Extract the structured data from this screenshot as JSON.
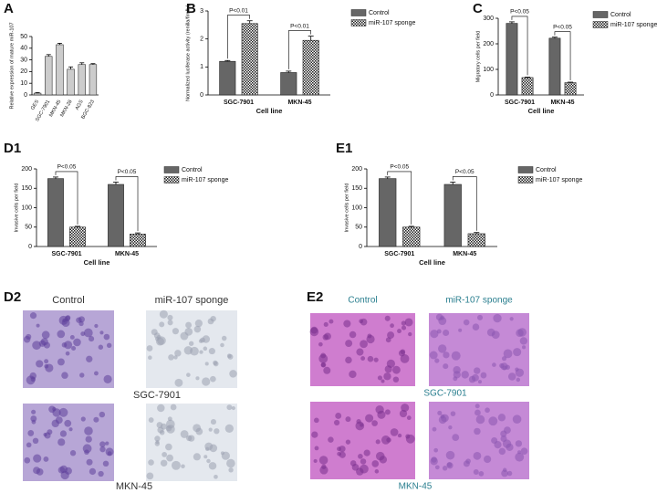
{
  "chart_data": [
    {
      "type": "bar",
      "panel": "A",
      "ylabel": "Relative expression of mature miR-107",
      "categories": [
        "GES",
        "SGC-7901",
        "MKN-45",
        "MKN-28",
        "AGS",
        "BGC-823"
      ],
      "values": [
        1.5,
        33,
        43,
        22,
        26,
        26
      ],
      "errors": [
        0.5,
        1.5,
        1.2,
        2,
        1.5,
        0.8
      ],
      "color": "#cccccc",
      "ylim": [
        0,
        50
      ],
      "yticks": [
        0,
        10,
        20,
        30,
        40,
        50
      ]
    },
    {
      "type": "grouped-bar",
      "panel": "B",
      "ylabel": "Normalized luciferase activity (renilla/firefly)",
      "xlabel": "Cell line",
      "categories": [
        "SGC-7901",
        "MKN-45"
      ],
      "series": [
        {
          "name": "Control",
          "color": "#666666",
          "values": [
            1.2,
            0.8
          ],
          "errors": [
            0.03,
            0.05
          ]
        },
        {
          "name": "miR-107 sponge",
          "color": "#222222",
          "values": [
            2.55,
            1.95
          ],
          "errors": [
            0.1,
            0.15
          ]
        }
      ],
      "annotations": [
        "P<0.01",
        "P<0.01"
      ],
      "ylim": [
        0,
        3
      ],
      "yticks": [
        0,
        1,
        2,
        3
      ]
    },
    {
      "type": "grouped-bar",
      "panel": "C",
      "ylabel": "Migratory cells per field",
      "xlabel": "Cell line",
      "categories": [
        "SGC-7901",
        "MKN-45"
      ],
      "series": [
        {
          "name": "Control",
          "color": "#666666",
          "values": [
            280,
            222
          ],
          "errors": [
            6,
            4
          ]
        },
        {
          "name": "miR-107 sponge",
          "color": "#222222",
          "values": [
            68,
            48
          ],
          "errors": [
            2,
            2
          ]
        }
      ],
      "annotations": [
        "P<0.05",
        "P<0.05"
      ],
      "ylim": [
        0,
        300
      ],
      "yticks": [
        0,
        100,
        200,
        300
      ]
    },
    {
      "type": "grouped-bar",
      "panel": "D1",
      "ylabel": "Invasive cells per field",
      "xlabel": "Cell line",
      "categories": [
        "SGC-7901",
        "MKN-45"
      ],
      "series": [
        {
          "name": "Control",
          "color": "#666666",
          "values": [
            175,
            160
          ],
          "errors": [
            4,
            6
          ]
        },
        {
          "name": "miR-107 sponge",
          "color": "#222222",
          "values": [
            50,
            32
          ],
          "errors": [
            2,
            3
          ]
        }
      ],
      "annotations": [
        "P<0.05",
        "P<0.05"
      ],
      "ylim": [
        0,
        200
      ],
      "yticks": [
        0,
        50,
        100,
        150,
        200
      ]
    },
    {
      "type": "grouped-bar",
      "panel": "E1",
      "ylabel": "Invasive cells per field",
      "xlabel": "Cell line",
      "categories": [
        "SGC-7901",
        "MKN-45"
      ],
      "series": [
        {
          "name": "Control",
          "color": "#666666",
          "values": [
            175,
            160
          ],
          "errors": [
            4,
            6
          ]
        },
        {
          "name": "miR-107 sponge",
          "color": "#222222",
          "values": [
            50,
            33
          ],
          "errors": [
            2,
            3
          ]
        }
      ],
      "annotations": [
        "P<0.05",
        "P<0.05"
      ],
      "ylim": [
        0,
        200
      ],
      "yticks": [
        0,
        50,
        100,
        150,
        200
      ]
    }
  ],
  "images": [
    {
      "panel": "D2",
      "columns": [
        "Control",
        "miR-107 sponge"
      ],
      "rows": [
        "SGC-7901",
        "MKN-45"
      ]
    },
    {
      "panel": "E2",
      "columns": [
        "Control",
        "miR-107 sponge"
      ],
      "rows": [
        "SGC-7901",
        "MKN-45"
      ]
    }
  ]
}
